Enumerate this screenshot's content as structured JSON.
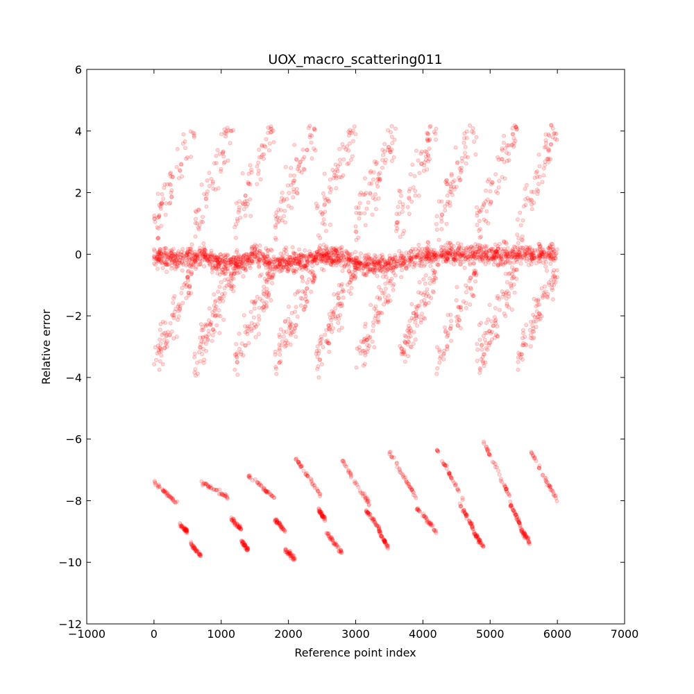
{
  "chart_data": {
    "type": "scatter",
    "title": "UOX_macro_scattering011",
    "xlabel": "Reference point index",
    "ylabel": "Relative error",
    "xlim": [
      -1000,
      7000
    ],
    "ylim": [
      -12,
      6
    ],
    "xticks": [
      -1000,
      0,
      1000,
      2000,
      3000,
      4000,
      5000,
      6000,
      7000
    ],
    "yticks": [
      6,
      4,
      2,
      0,
      -2,
      -4,
      -6,
      -8,
      -10,
      -12
    ],
    "xtick_labels": [
      "−1000",
      "0",
      "1000",
      "2000",
      "3000",
      "4000",
      "5000",
      "6000",
      "7000"
    ],
    "ytick_labels": [
      "6",
      "4",
      "2",
      "0",
      "−2",
      "−4",
      "−6",
      "−8",
      "−10",
      "−12"
    ],
    "grid": false,
    "marker_color": "#ff0000",
    "marker_alpha": 0.15,
    "series": [
      {
        "bands": [
          {
            "label": "core",
            "x_range": [
              0,
              6000
            ],
            "y_center_points": [
              [
                0,
                -0.1
              ],
              [
                500,
                -0.1
              ],
              [
                700,
                -0.05
              ],
              [
                1000,
                -0.3
              ],
              [
                1300,
                -0.3
              ],
              [
                1500,
                0.0
              ],
              [
                1800,
                -0.3
              ],
              [
                2200,
                -0.2
              ],
              [
                2700,
                0.0
              ],
              [
                3000,
                -0.3
              ],
              [
                3400,
                -0.4
              ],
              [
                4000,
                0.0
              ],
              [
                4500,
                0.0
              ],
              [
                5000,
                0.0
              ],
              [
                6000,
                0.0
              ]
            ],
            "spread": 0.35,
            "count": 1800
          },
          {
            "label": "upper",
            "x_range": [
              0,
              6000
            ],
            "y_range": [
              0.3,
              4.2
            ],
            "count": 650
          },
          {
            "label": "lower",
            "x_range": [
              0,
              6000
            ],
            "y_range": [
              -4.0,
              -0.5
            ],
            "count": 850
          }
        ],
        "low_segments": [
          {
            "x": [
              0,
              350
            ],
            "y": [
              -7.4,
              -8.1
            ]
          },
          {
            "x": [
              380,
              500
            ],
            "y": [
              -8.8,
              -9.0
            ]
          },
          {
            "x": [
              550,
              700
            ],
            "y": [
              -9.4,
              -9.8
            ]
          },
          {
            "x": [
              700,
              1100
            ],
            "y": [
              -7.4,
              -7.9
            ]
          },
          {
            "x": [
              1150,
              1300
            ],
            "y": [
              -8.6,
              -8.9
            ]
          },
          {
            "x": [
              1300,
              1400
            ],
            "y": [
              -9.3,
              -9.6
            ]
          },
          {
            "x": [
              1400,
              1800
            ],
            "y": [
              -7.2,
              -7.9
            ]
          },
          {
            "x": [
              1800,
              1950
            ],
            "y": [
              -8.6,
              -9.0
            ]
          },
          {
            "x": [
              1950,
              2100
            ],
            "y": [
              -9.6,
              -9.9
            ]
          },
          {
            "x": [
              2100,
              2500
            ],
            "y": [
              -6.6,
              -7.9
            ]
          },
          {
            "x": [
              2450,
              2550
            ],
            "y": [
              -8.3,
              -8.6
            ]
          },
          {
            "x": [
              2550,
              2800
            ],
            "y": [
              -9.0,
              -9.7
            ]
          },
          {
            "x": [
              2800,
              3200
            ],
            "y": [
              -6.7,
              -8.1
            ]
          },
          {
            "x": [
              3150,
              3350
            ],
            "y": [
              -8.3,
              -8.9
            ]
          },
          {
            "x": [
              3350,
              3500
            ],
            "y": [
              -9.0,
              -9.6
            ]
          },
          {
            "x": [
              3500,
              3900
            ],
            "y": [
              -6.4,
              -7.9
            ]
          },
          {
            "x": [
              3900,
              4200
            ],
            "y": [
              -8.2,
              -9.0
            ]
          },
          {
            "x": [
              4200,
              4600
            ],
            "y": [
              -6.3,
              -8.0
            ]
          },
          {
            "x": [
              4550,
              4750
            ],
            "y": [
              -8.1,
              -8.9
            ]
          },
          {
            "x": [
              4750,
              4900
            ],
            "y": [
              -9.0,
              -9.5
            ]
          },
          {
            "x": [
              4900,
              5300
            ],
            "y": [
              -6.1,
              -7.9
            ]
          },
          {
            "x": [
              5300,
              5450
            ],
            "y": [
              -8.1,
              -8.8
            ]
          },
          {
            "x": [
              5450,
              5600
            ],
            "y": [
              -8.9,
              -9.4
            ]
          },
          {
            "x": [
              5600,
              6000
            ],
            "y": [
              -6.4,
              -8.0
            ]
          }
        ],
        "points_per_low_segment": 38,
        "seed": 11
      }
    ]
  }
}
